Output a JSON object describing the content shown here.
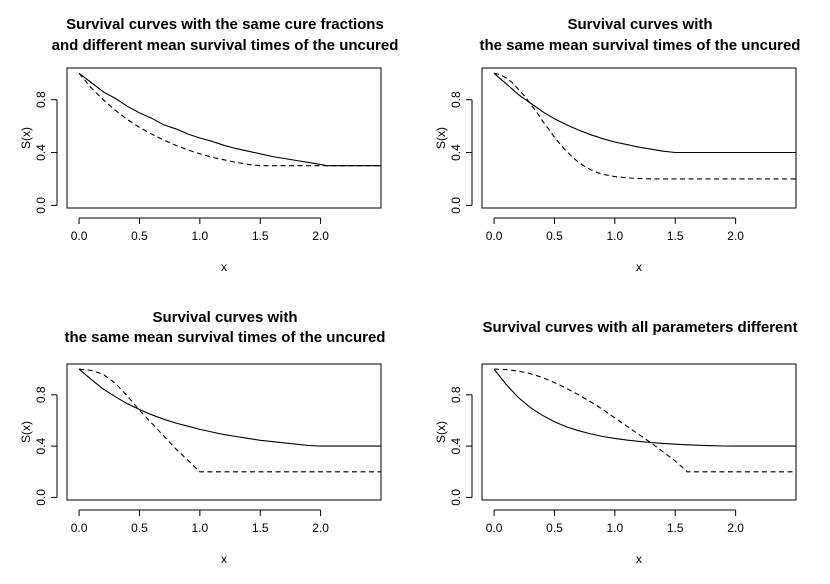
{
  "figure": {
    "panels": 4,
    "line_styles": {
      "solid": "#000000",
      "dashed": "#000000"
    }
  },
  "chart_data": [
    {
      "type": "line",
      "title_lines": [
        "Survival curves with the same cure fractions",
        "and different mean survival times of the uncured"
      ],
      "xlabel": "x",
      "ylabel": "S(x)",
      "xlim": [
        -0.1,
        2.5
      ],
      "ylim": [
        -0.02,
        1.04
      ],
      "xticks": [
        0.0,
        0.5,
        1.0,
        1.5,
        2.0
      ],
      "xtick_labels": [
        "0.0",
        "0.5",
        "1.0",
        "1.5",
        "2.0"
      ],
      "yticks": [
        0.0,
        0.4,
        0.8
      ],
      "ytick_labels": [
        "0.0",
        "0.4",
        "0.8"
      ],
      "series": [
        {
          "name": "solid",
          "dash": "solid",
          "x": [
            0,
            0.1,
            0.2,
            0.3,
            0.4,
            0.5,
            0.6,
            0.7,
            0.8,
            0.9,
            1.0,
            1.1,
            1.2,
            1.3,
            1.4,
            1.5,
            1.6,
            1.7,
            1.8,
            1.9,
            2.0,
            2.05,
            2.5
          ],
          "y": [
            1.0,
            0.93,
            0.86,
            0.81,
            0.75,
            0.7,
            0.66,
            0.61,
            0.58,
            0.54,
            0.51,
            0.485,
            0.455,
            0.43,
            0.41,
            0.39,
            0.37,
            0.355,
            0.34,
            0.325,
            0.31,
            0.3,
            0.3
          ]
        },
        {
          "name": "dashed",
          "dash": "dashed",
          "x": [
            0,
            0.1,
            0.2,
            0.3,
            0.4,
            0.5,
            0.6,
            0.7,
            0.8,
            0.9,
            1.0,
            1.1,
            1.2,
            1.3,
            1.4,
            1.5,
            2.5
          ],
          "y": [
            1.0,
            0.89,
            0.8,
            0.72,
            0.65,
            0.59,
            0.54,
            0.495,
            0.455,
            0.42,
            0.39,
            0.365,
            0.345,
            0.325,
            0.31,
            0.3,
            0.3
          ]
        }
      ]
    },
    {
      "type": "line",
      "title_lines": [
        "Survival curves with",
        "the same mean survival times of the uncured"
      ],
      "xlabel": "x",
      "ylabel": "S(x)",
      "xlim": [
        -0.1,
        2.5
      ],
      "ylim": [
        -0.02,
        1.04
      ],
      "xticks": [
        0.0,
        0.5,
        1.0,
        1.5,
        2.0
      ],
      "xtick_labels": [
        "0.0",
        "0.5",
        "1.0",
        "1.5",
        "2.0"
      ],
      "yticks": [
        0.0,
        0.4,
        0.8
      ],
      "ytick_labels": [
        "0.0",
        "0.4",
        "0.8"
      ],
      "series": [
        {
          "name": "solid",
          "dash": "solid",
          "x": [
            0,
            0.1,
            0.2,
            0.3,
            0.4,
            0.5,
            0.6,
            0.7,
            0.8,
            0.9,
            1.0,
            1.1,
            1.2,
            1.3,
            1.4,
            1.5,
            2.5
          ],
          "y": [
            1.0,
            0.92,
            0.84,
            0.775,
            0.71,
            0.655,
            0.61,
            0.57,
            0.535,
            0.505,
            0.48,
            0.46,
            0.44,
            0.425,
            0.41,
            0.4,
            0.4
          ]
        },
        {
          "name": "dashed",
          "dash": "dashed",
          "x": [
            0,
            0.05,
            0.1,
            0.15,
            0.2,
            0.25,
            0.3,
            0.35,
            0.4,
            0.45,
            0.5,
            0.55,
            0.6,
            0.65,
            0.7,
            0.75,
            0.8,
            0.85,
            0.9,
            1.0,
            1.1,
            1.2,
            1.3,
            1.4,
            1.5,
            2.5
          ],
          "y": [
            1.0,
            0.99,
            0.965,
            0.93,
            0.88,
            0.83,
            0.77,
            0.71,
            0.64,
            0.58,
            0.515,
            0.46,
            0.41,
            0.365,
            0.325,
            0.295,
            0.27,
            0.25,
            0.235,
            0.218,
            0.208,
            0.203,
            0.2,
            0.2,
            0.2,
            0.2
          ]
        }
      ]
    },
    {
      "type": "line",
      "title_lines": [
        "Survival curves with",
        "the same mean survival times of the uncured"
      ],
      "xlabel": "x",
      "ylabel": "S(x)",
      "xlim": [
        -0.1,
        2.5
      ],
      "ylim": [
        -0.02,
        1.04
      ],
      "xticks": [
        0.0,
        0.5,
        1.0,
        1.5,
        2.0
      ],
      "xtick_labels": [
        "0.0",
        "0.5",
        "1.0",
        "1.5",
        "2.0"
      ],
      "yticks": [
        0.0,
        0.4,
        0.8
      ],
      "ytick_labels": [
        "0.0",
        "0.4",
        "0.8"
      ],
      "series": [
        {
          "name": "solid",
          "dash": "solid",
          "x": [
            0,
            0.1,
            0.2,
            0.3,
            0.4,
            0.5,
            0.6,
            0.7,
            0.8,
            0.9,
            1.0,
            1.1,
            1.2,
            1.3,
            1.4,
            1.5,
            1.6,
            1.7,
            1.8,
            1.9,
            2.0,
            2.5
          ],
          "y": [
            1.0,
            0.92,
            0.845,
            0.785,
            0.73,
            0.685,
            0.645,
            0.61,
            0.58,
            0.555,
            0.53,
            0.51,
            0.49,
            0.475,
            0.46,
            0.445,
            0.435,
            0.425,
            0.415,
            0.405,
            0.4,
            0.4
          ]
        },
        {
          "name": "dashed",
          "dash": "dashed",
          "x": [
            0,
            0.1,
            0.2,
            0.3,
            0.4,
            0.5,
            0.6,
            0.7,
            0.8,
            0.9,
            1.0,
            2.5
          ],
          "y": [
            1.0,
            0.99,
            0.96,
            0.89,
            0.79,
            0.68,
            0.58,
            0.48,
            0.38,
            0.29,
            0.2,
            0.2
          ]
        }
      ]
    },
    {
      "type": "line",
      "title_lines": [
        "Survival curves with all parameters different"
      ],
      "xlabel": "x",
      "ylabel": "S(x)",
      "xlim": [
        -0.1,
        2.5
      ],
      "ylim": [
        -0.02,
        1.04
      ],
      "xticks": [
        0.0,
        0.5,
        1.0,
        1.5,
        2.0
      ],
      "xtick_labels": [
        "0.0",
        "0.5",
        "1.0",
        "1.5",
        "2.0"
      ],
      "yticks": [
        0.0,
        0.4,
        0.8
      ],
      "ytick_labels": [
        "0.0",
        "0.4",
        "0.8"
      ],
      "series": [
        {
          "name": "solid",
          "dash": "solid",
          "x": [
            0,
            0.1,
            0.2,
            0.3,
            0.4,
            0.5,
            0.6,
            0.7,
            0.8,
            0.9,
            1.0,
            1.1,
            1.2,
            1.3,
            1.4,
            1.5,
            1.6,
            1.7,
            1.8,
            1.9,
            2.0,
            2.5
          ],
          "y": [
            1.0,
            0.88,
            0.78,
            0.7,
            0.64,
            0.59,
            0.55,
            0.52,
            0.495,
            0.475,
            0.46,
            0.447,
            0.437,
            0.428,
            0.421,
            0.415,
            0.41,
            0.406,
            0.403,
            0.401,
            0.4,
            0.4
          ]
        },
        {
          "name": "dashed",
          "dash": "dashed",
          "x": [
            0,
            0.1,
            0.2,
            0.3,
            0.4,
            0.5,
            0.6,
            0.7,
            0.8,
            0.9,
            1.0,
            1.1,
            1.2,
            1.3,
            1.4,
            1.5,
            1.6,
            2.5
          ],
          "y": [
            1.0,
            0.997,
            0.985,
            0.965,
            0.935,
            0.895,
            0.85,
            0.8,
            0.745,
            0.685,
            0.62,
            0.555,
            0.49,
            0.425,
            0.355,
            0.285,
            0.2,
            0.2
          ]
        }
      ]
    }
  ]
}
